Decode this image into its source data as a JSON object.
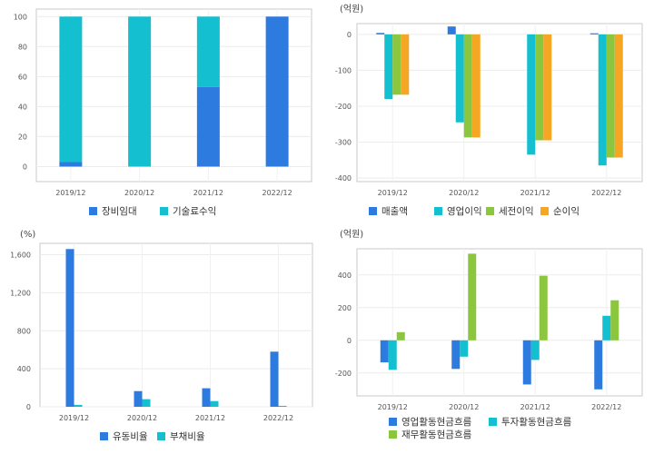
{
  "charts": [
    {
      "type": "bar",
      "stacked": true,
      "unit_label": "",
      "categories": [
        "2019/12",
        "2020/12",
        "2021/12",
        "2022/12"
      ],
      "yticks": [
        "0",
        "20",
        "40",
        "60",
        "80",
        "100"
      ],
      "ylim": [
        -10,
        105
      ],
      "series": [
        {
          "name": "장비임대",
          "color": "#2e7be0",
          "values": [
            3,
            0,
            53,
            100
          ]
        },
        {
          "name": "기술료수익",
          "color": "#14bfcf",
          "values": [
            97,
            100,
            47,
            0
          ]
        }
      ]
    },
    {
      "type": "bar",
      "stacked": false,
      "unit_label": "(억원)",
      "categories": [
        "2019/12",
        "2020/12",
        "2021/12",
        "2022/12"
      ],
      "yticks": [
        "0",
        "-100",
        "-200",
        "-300",
        "-400"
      ],
      "ylim": [
        -410,
        30
      ],
      "series": [
        {
          "name": "매출액",
          "color": "#2e7be0",
          "values": [
            4,
            22,
            0,
            3
          ]
        },
        {
          "name": "영업이익",
          "color": "#14bfcf",
          "values": [
            -180,
            -245,
            -335,
            -365
          ]
        },
        {
          "name": "세전이익",
          "color": "#8cc63f",
          "values": [
            -168,
            -287,
            -295,
            -343
          ]
        },
        {
          "name": "순이익",
          "color": "#f5a623",
          "values": [
            -168,
            -287,
            -295,
            -343
          ]
        }
      ]
    },
    {
      "type": "bar",
      "stacked": false,
      "unit_label": "(%)",
      "categories": [
        "2019/12",
        "2020/12",
        "2021/12",
        "2022/12"
      ],
      "yticks": [
        "0",
        "400",
        "800",
        "1,200",
        "1,600"
      ],
      "ylim": [
        0,
        1720
      ],
      "series": [
        {
          "name": "유동비율",
          "color": "#2e7be0",
          "values": [
            1660,
            165,
            195,
            580
          ]
        },
        {
          "name": "부채비율",
          "color": "#14bfcf",
          "values": [
            20,
            80,
            60,
            10
          ]
        }
      ]
    },
    {
      "type": "bar",
      "stacked": false,
      "unit_label": "(억원)",
      "categories": [
        "2019/12",
        "2020/12",
        "2021/12",
        "2022/12"
      ],
      "yticks": [
        "-200",
        "0",
        "200",
        "400"
      ],
      "ylim": [
        -340,
        560
      ],
      "series": [
        {
          "name": "영업활동현금흐름",
          "color": "#2e7be0",
          "values": [
            -135,
            -175,
            -270,
            -300
          ]
        },
        {
          "name": "투자활동현금흐름",
          "color": "#14bfcf",
          "values": [
            -180,
            -100,
            -120,
            150
          ]
        },
        {
          "name": "재무활동현금흐름",
          "color": "#8cc63f",
          "values": [
            50,
            530,
            395,
            245
          ]
        }
      ]
    }
  ]
}
